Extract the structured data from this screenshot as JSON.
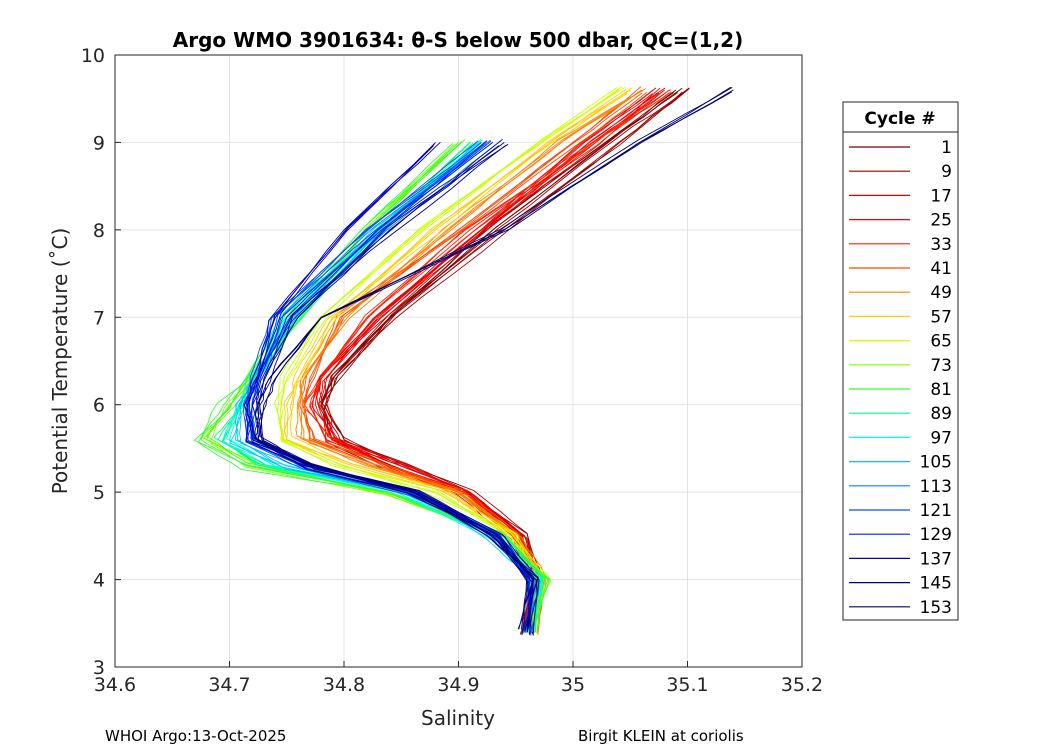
{
  "chart_data": {
    "type": "line",
    "title": "Argo WMO 3901634: θ-S below 500 dbar,  QC=(1,2)",
    "xlabel": "Salinity",
    "ylabel": "Potential Temperature (˚C)",
    "xlim": [
      34.6,
      35.2
    ],
    "ylim": [
      3,
      10
    ],
    "xticks": [
      "34.6",
      "34.7",
      "34.8",
      "34.9",
      "35",
      "35.1",
      "35.2"
    ],
    "yticks": [
      "3",
      "4",
      "5",
      "6",
      "7",
      "8",
      "9",
      "10"
    ],
    "grid": true,
    "legend": {
      "title": "Cycle #",
      "placement": "right"
    },
    "theta_levels": [
      9.6,
      9,
      8,
      7,
      6.3,
      6,
      5.6,
      5.3,
      5,
      4.5,
      4,
      3.4
    ],
    "series": [
      {
        "name": "1",
        "color": "#800000",
        "salinity": [
          35.09,
          35.03,
          34.93,
          34.84,
          34.79,
          34.78,
          34.79,
          34.84,
          34.91,
          34.955,
          34.965,
          34.96
        ]
      },
      {
        "name": "9",
        "color": "#9a0000",
        "salinity": [
          35.1,
          35.04,
          34.94,
          34.84,
          34.79,
          34.785,
          34.8,
          34.85,
          34.91,
          34.955,
          34.97,
          34.96
        ]
      },
      {
        "name": "17",
        "color": "#e00000",
        "salinity": [
          35.08,
          35.02,
          34.92,
          34.83,
          34.785,
          34.78,
          34.79,
          34.84,
          34.9,
          34.95,
          34.965,
          34.96
        ]
      },
      {
        "name": "25",
        "color": "#f00000",
        "salinity": [
          35.07,
          35.01,
          34.92,
          34.83,
          34.78,
          34.775,
          34.79,
          34.85,
          34.91,
          34.955,
          34.97,
          34.962
        ]
      },
      {
        "name": "33",
        "color": "#ff2000",
        "salinity": [
          35.08,
          35.02,
          34.91,
          34.82,
          34.78,
          34.77,
          34.785,
          34.84,
          34.9,
          34.95,
          34.965,
          34.96
        ]
      },
      {
        "name": "41",
        "color": "#ff4800",
        "salinity": [
          35.06,
          35.0,
          34.9,
          34.8,
          34.77,
          34.765,
          34.77,
          34.83,
          34.9,
          34.95,
          34.97,
          34.965
        ]
      },
      {
        "name": "49",
        "color": "#ff8000",
        "salinity": [
          35.06,
          34.99,
          34.89,
          34.8,
          34.765,
          34.76,
          34.765,
          34.82,
          34.9,
          34.95,
          34.972,
          34.965
        ]
      },
      {
        "name": "57",
        "color": "#ffcc00",
        "salinity": [
          35.05,
          34.98,
          34.88,
          34.79,
          34.76,
          34.75,
          34.75,
          34.8,
          34.89,
          34.945,
          34.975,
          34.965
        ]
      },
      {
        "name": "65",
        "color": "#ccff00",
        "salinity": [
          35.04,
          34.97,
          34.87,
          34.78,
          34.75,
          34.745,
          34.745,
          34.79,
          34.88,
          34.945,
          34.975,
          34.965
        ]
      },
      {
        "name": "73",
        "color": "#80ff00",
        "salinity": [
          null,
          34.9,
          34.82,
          34.76,
          34.72,
          34.7,
          34.68,
          34.72,
          34.84,
          34.935,
          34.975,
          34.965
        ]
      },
      {
        "name": "81",
        "color": "#33ff33",
        "salinity": [
          null,
          34.9,
          34.82,
          34.75,
          34.715,
          34.695,
          34.675,
          34.715,
          34.84,
          34.935,
          34.978,
          34.965
        ]
      },
      {
        "name": "89",
        "color": "#00ff80",
        "salinity": [
          null,
          34.91,
          34.83,
          34.76,
          34.72,
          34.71,
          34.69,
          34.73,
          34.85,
          34.935,
          34.97,
          34.965
        ]
      },
      {
        "name": "97",
        "color": "#00ffe0",
        "salinity": [
          null,
          34.92,
          34.83,
          34.75,
          34.72,
          34.71,
          34.7,
          34.74,
          34.85,
          34.93,
          34.97,
          34.96
        ]
      },
      {
        "name": "105",
        "color": "#00c0ff",
        "salinity": [
          null,
          34.92,
          34.83,
          34.755,
          34.72,
          34.71,
          34.705,
          34.75,
          34.855,
          34.93,
          34.968,
          34.96
        ]
      },
      {
        "name": "113",
        "color": "#0080ff",
        "salinity": [
          null,
          34.93,
          34.83,
          34.75,
          34.725,
          34.72,
          34.72,
          34.77,
          34.86,
          34.93,
          34.965,
          34.96
        ]
      },
      {
        "name": "121",
        "color": "#0050ff",
        "salinity": [
          null,
          34.92,
          34.82,
          34.74,
          34.72,
          34.715,
          34.715,
          34.765,
          34.86,
          34.93,
          34.965,
          34.96
        ]
      },
      {
        "name": "129",
        "color": "#0020e0",
        "salinity": [
          null,
          34.93,
          34.83,
          34.75,
          34.725,
          34.72,
          34.72,
          34.77,
          34.865,
          34.935,
          34.965,
          34.96
        ]
      },
      {
        "name": "137",
        "color": "#0000c0",
        "salinity": [
          null,
          34.88,
          34.8,
          34.74,
          34.72,
          34.715,
          34.72,
          34.77,
          34.86,
          34.93,
          34.965,
          34.958
        ]
      },
      {
        "name": "145",
        "color": "#000090",
        "salinity": [
          null,
          34.94,
          34.84,
          34.76,
          34.73,
          34.725,
          34.725,
          34.775,
          34.865,
          34.935,
          34.965,
          34.96
        ]
      },
      {
        "name": "153",
        "color": "#000070",
        "salinity": [
          35.14,
          35.06,
          34.94,
          34.78,
          34.74,
          34.73,
          34.725,
          34.77,
          34.86,
          34.93,
          34.965,
          34.96
        ]
      }
    ]
  },
  "footer": {
    "left": "WHOI Argo:13-Oct-2025",
    "right": "Birgit KLEIN at coriolis"
  }
}
